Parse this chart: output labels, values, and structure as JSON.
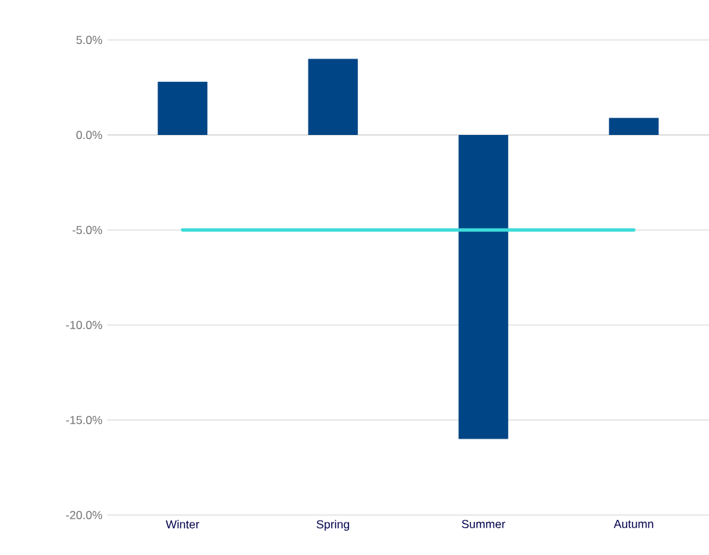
{
  "chart_data": {
    "type": "bar",
    "categories": [
      "Winter",
      "Spring",
      "Summer",
      "Autumn"
    ],
    "values": [
      2.8,
      4.0,
      -16.0,
      0.9
    ],
    "color": "#004586",
    "ylim": [
      -20,
      5
    ],
    "yticks": [
      {
        "value": -20,
        "label": "-20.0%"
      },
      {
        "value": -15,
        "label": "-15.0%"
      },
      {
        "value": -10,
        "label": "-10.0%"
      },
      {
        "value": -5,
        "label": "-5.0%"
      },
      {
        "value": 0,
        "label": "0.0%"
      },
      {
        "value": 5,
        "label": "5.0%"
      }
    ],
    "grid": "y",
    "ref_lines": [
      {
        "axis": "y",
        "value": -5,
        "color": "#3ddbd9"
      }
    ]
  }
}
